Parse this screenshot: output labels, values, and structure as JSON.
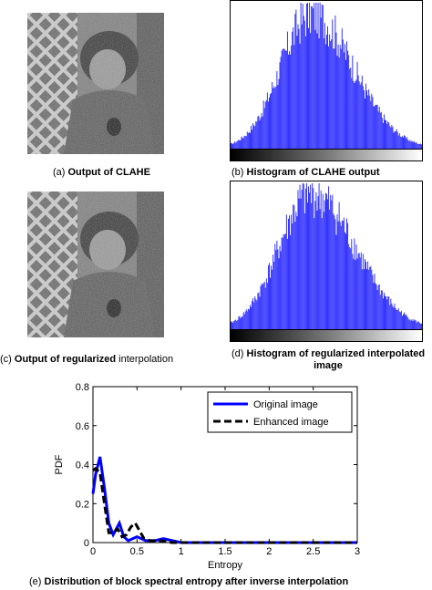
{
  "panels": {
    "a": {
      "caption_prefix": "(a) ",
      "caption_bold": "Output of CLAHE",
      "caption_rest": ""
    },
    "b": {
      "caption_prefix": "(b) ",
      "caption_bold": "Histogram of CLAHE output",
      "caption_rest": ""
    },
    "c": {
      "caption_prefix": "(c) ",
      "caption_bold": "Output of regularized",
      "caption_rest": " interpolation"
    },
    "d": {
      "caption_prefix": "(d) ",
      "caption_bold": "Histogram of regularized interpolated",
      "caption_line2": "image"
    },
    "e": {
      "caption_prefix": "(e) ",
      "caption_bold": "Distribution of block spectral entropy after inverse interpolation"
    }
  },
  "colors": {
    "hist_bar": "#2b2bff",
    "original_line": "#0000ff",
    "enhanced_line": "#000000"
  },
  "chart_data": [
    {
      "type": "bar",
      "panel": "b",
      "title": "Histogram of CLAHE output",
      "shape": "unimodal, peak near middle-right of intensity range, slightly jagged top",
      "peak_position_fraction": 0.42,
      "spread_fraction": 0.19
    },
    {
      "type": "bar",
      "panel": "d",
      "title": "Histogram of regularized interpolated image",
      "shape": "unimodal, smoother, peak near middle",
      "peak_position_fraction": 0.42,
      "spread_fraction": 0.2
    },
    {
      "type": "line",
      "panel": "e",
      "xlabel": "Entropy",
      "ylabel": "PDF",
      "xlim": [
        0,
        3
      ],
      "ylim": [
        0,
        0.8
      ],
      "xticks": [
        "0",
        "0.5",
        "1",
        "1.5",
        "2",
        "2.5",
        "3"
      ],
      "yticks": [
        "0",
        "0.2",
        "0.4",
        "0.6",
        "0.8"
      ],
      "legend_position": "top-right",
      "series": [
        {
          "name": "Original image",
          "x": [
            0,
            0.03,
            0.08,
            0.13,
            0.18,
            0.23,
            0.3,
            0.35,
            0.4,
            0.45,
            0.5,
            0.55,
            0.6,
            0.7,
            0.8,
            0.9,
            1.0,
            1.2,
            1.5,
            2.0,
            2.5,
            3.0
          ],
          "y": [
            0.25,
            0.35,
            0.44,
            0.28,
            0.1,
            0.04,
            0.1,
            0.03,
            0.01,
            0.02,
            0.03,
            0.02,
            0.01,
            0.01,
            0.02,
            0.01,
            0.0,
            0.0,
            0.0,
            0.0,
            0.0,
            0.0
          ]
        },
        {
          "name": "Enhanced image",
          "x": [
            0,
            0.03,
            0.08,
            0.13,
            0.18,
            0.23,
            0.28,
            0.33,
            0.38,
            0.43,
            0.48,
            0.53,
            0.58,
            0.65,
            0.75,
            0.9,
            1.0,
            1.2,
            1.5,
            2.0,
            2.5,
            3.0
          ],
          "y": [
            0.37,
            0.38,
            0.36,
            0.2,
            0.05,
            0.05,
            0.07,
            0.03,
            0.04,
            0.08,
            0.1,
            0.06,
            0.02,
            0.01,
            0.01,
            0.0,
            0.0,
            0.0,
            0.0,
            0.0,
            0.0,
            0.0
          ]
        }
      ]
    }
  ]
}
